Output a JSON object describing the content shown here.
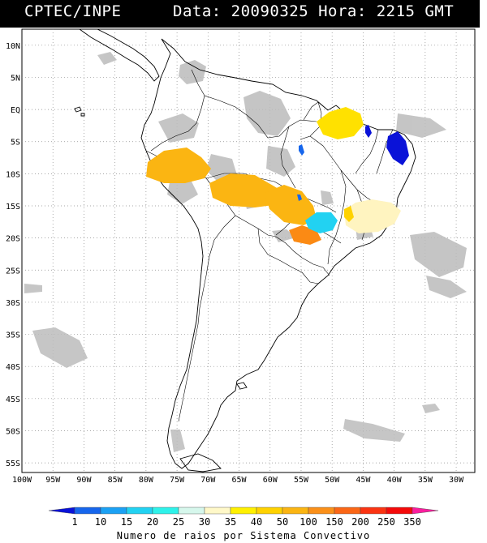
{
  "header": {
    "source": "CPTEC/INPE",
    "date_time": "Data: 20090325 Hora: 2215 GMT"
  },
  "map": {
    "lon_labels": [
      "100W",
      "95W",
      "90W",
      "85W",
      "80W",
      "75W",
      "70W",
      "65W",
      "60W",
      "55W",
      "50W",
      "45W",
      "40W",
      "35W",
      "30W"
    ],
    "lat_labels": [
      "10N",
      "5N",
      "EQ",
      "5S",
      "10S",
      "15S",
      "20S",
      "25S",
      "30S",
      "35S",
      "40S",
      "45S",
      "50S",
      "55S"
    ],
    "lon_range": [
      -100,
      -27
    ],
    "lat_range": [
      -56.5,
      12.5
    ]
  },
  "colorbar": {
    "caption": "Numero de raios por Sistema Convectivo",
    "ticks": [
      "1",
      "10",
      "15",
      "20",
      "25",
      "30",
      "35",
      "40",
      "50",
      "100",
      "150",
      "200",
      "250",
      "350"
    ],
    "colors": [
      "#0a12d8",
      "#1666ec",
      "#1ba1f4",
      "#22d2f2",
      "#2ef2ea",
      "#d6f7ec",
      "#fff8c8",
      "#fff000",
      "#ffd200",
      "#fbb512",
      "#fb9019",
      "#fb6716",
      "#fb3412",
      "#f40a0a",
      "#fa1e9e"
    ]
  },
  "lightning_clusters": [
    {
      "category": "50",
      "lon": -73.5,
      "lat": -10.0
    },
    {
      "category": "50",
      "lon": -66.0,
      "lat": -12.5
    },
    {
      "category": "50",
      "lon": -57.5,
      "lat": -14.5
    },
    {
      "category": "40",
      "lon": -48.0,
      "lat": -3.0
    },
    {
      "category": "100",
      "lon": -55.5,
      "lat": -19.5
    },
    {
      "category": "25",
      "lon": -53.0,
      "lat": -17.5
    },
    {
      "category": "35",
      "lon": -44.0,
      "lat": -16.5
    },
    {
      "category": "1",
      "lon": -39.0,
      "lat": -6.5
    },
    {
      "category": "1",
      "lon": -45.5,
      "lat": -4.5
    }
  ]
}
